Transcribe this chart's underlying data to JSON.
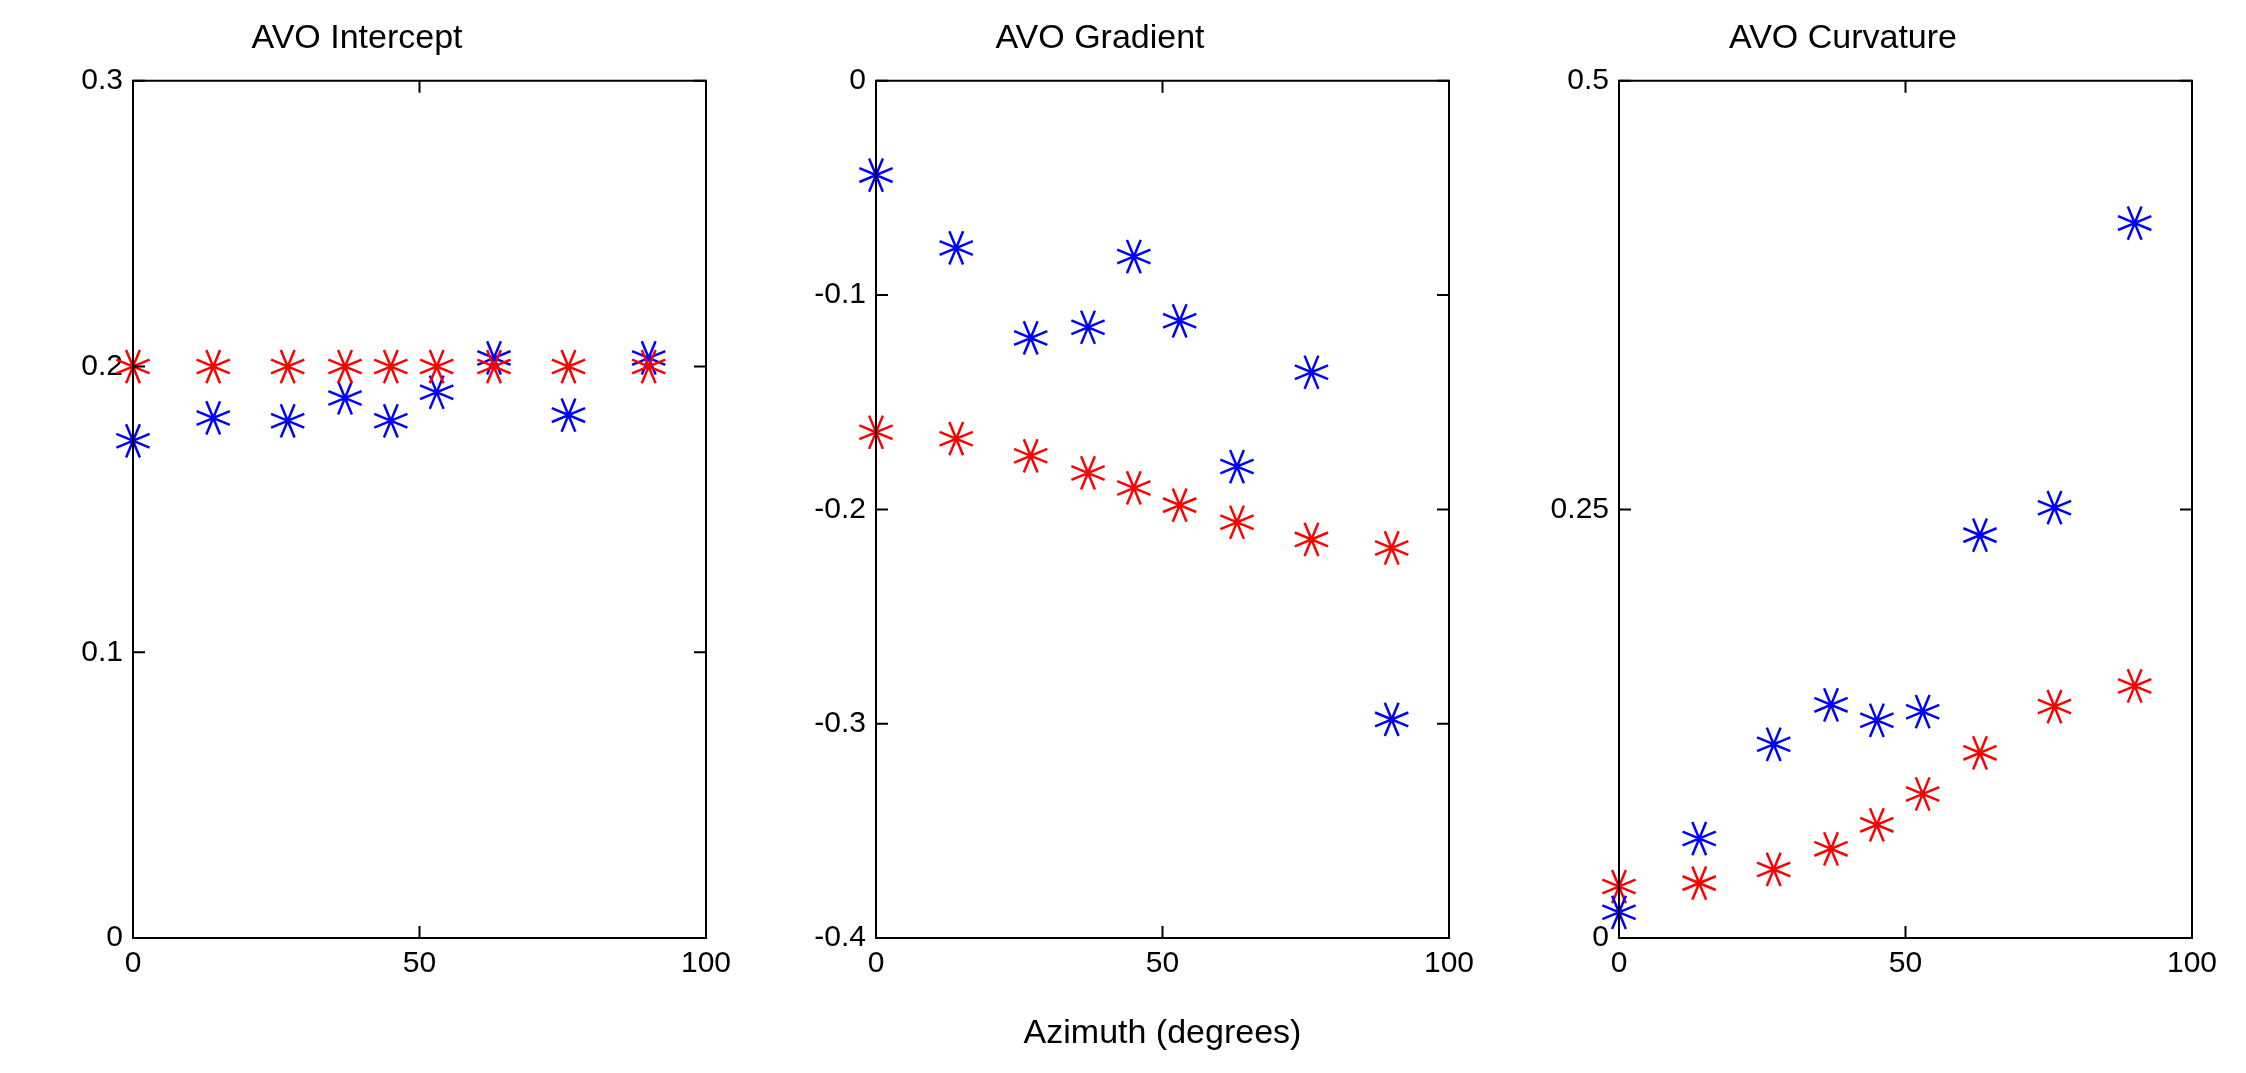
{
  "chart_data": [
    {
      "type": "scatter",
      "title": "AVO Intercept",
      "marker": "cross",
      "xlim": [
        0,
        100
      ],
      "xticks": [
        0,
        50,
        100
      ],
      "ylim": [
        0,
        0.3
      ],
      "yticks": [
        0,
        0.1,
        0.2,
        0.3
      ],
      "series": [
        {
          "color": "#ff0000",
          "x": [
            0,
            14,
            27,
            37,
            45,
            53,
            63,
            76,
            90
          ],
          "values": [
            0.2,
            0.2,
            0.2,
            0.2,
            0.2,
            0.2,
            0.2,
            0.2,
            0.2
          ]
        },
        {
          "color": "#0000ff",
          "x": [
            0,
            14,
            27,
            37,
            45,
            53,
            63,
            76,
            90
          ],
          "values": [
            0.174,
            0.182,
            0.181,
            0.189,
            0.181,
            0.191,
            0.203,
            0.183,
            0.203
          ]
        }
      ]
    },
    {
      "type": "scatter",
      "title": "AVO Gradient",
      "xlabel": "Azimuth (degrees)",
      "marker": "cross",
      "xlim": [
        0,
        100
      ],
      "xticks": [
        0,
        50,
        100
      ],
      "ylim": [
        -0.4,
        0
      ],
      "yticks": [
        -0.4,
        -0.3,
        -0.2,
        -0.1,
        0
      ],
      "series": [
        {
          "color": "#0000ff",
          "x": [
            0,
            14,
            27,
            37,
            45,
            53,
            63,
            76,
            90
          ],
          "values": [
            -0.044,
            -0.078,
            -0.12,
            -0.115,
            -0.082,
            -0.112,
            -0.18,
            -0.136,
            -0.298
          ]
        },
        {
          "color": "#ff0000",
          "x": [
            0,
            14,
            27,
            37,
            45,
            53,
            63,
            76,
            90
          ],
          "values": [
            -0.164,
            -0.167,
            -0.175,
            -0.183,
            -0.19,
            -0.198,
            -0.206,
            -0.214,
            -0.218
          ]
        }
      ]
    },
    {
      "type": "scatter",
      "title": "AVO Curvature",
      "marker": "cross",
      "xlim": [
        0,
        100
      ],
      "xticks": [
        0,
        50,
        100
      ],
      "ylim": [
        0,
        0.5
      ],
      "yticks": [
        0,
        0.25,
        0.5
      ],
      "series": [
        {
          "color": "#0000ff",
          "x": [
            0,
            14,
            27,
            37,
            45,
            53,
            63,
            76,
            90
          ],
          "values": [
            0.015,
            0.058,
            0.113,
            0.136,
            0.127,
            0.132,
            0.235,
            0.251,
            0.417
          ]
        },
        {
          "color": "#ff0000",
          "x": [
            0,
            14,
            27,
            37,
            45,
            53,
            63,
            76,
            90
          ],
          "values": [
            0.03,
            0.032,
            0.04,
            0.052,
            0.066,
            0.084,
            0.108,
            0.135,
            0.147
          ]
        }
      ]
    }
  ]
}
